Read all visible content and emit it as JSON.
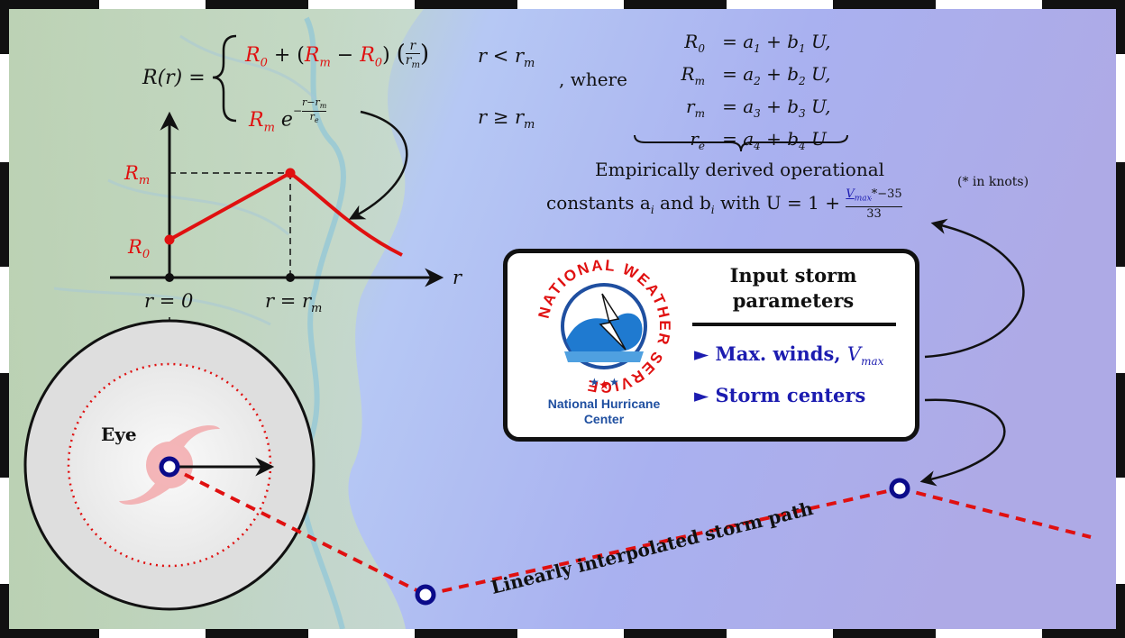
{
  "equation": {
    "lhs": "R(r) =",
    "case1_cond": "r < r",
    "case1_cond_sub": "m",
    "case2_cond": "r ≥ r",
    "case2_cond_sub": "m",
    "where": ", where",
    "constants": [
      {
        "name": "R",
        "sub": "0",
        "rhs": "= a",
        "rsub": "1",
        "tail": "+ b",
        "tsub": "1",
        "end": "U,"
      },
      {
        "name": "R",
        "sub": "m",
        "rhs": "= a",
        "rsub": "2",
        "tail": "+ b",
        "tsub": "2",
        "end": "U,"
      },
      {
        "name": "r",
        "sub": "m",
        "rhs": "= a",
        "rsub": "3",
        "tail": "+ b",
        "tsub": "3",
        "end": "U,"
      },
      {
        "name": "r",
        "sub": "e",
        "rhs": "= a",
        "rsub": "4",
        "tail": "+ b",
        "tsub": "4",
        "end": "U"
      }
    ]
  },
  "constants_note": {
    "line1": "Empirically derived operational",
    "line2": "constants a",
    "line2b": "and b",
    "line2c": "with U = 1 +",
    "frac_num": "V",
    "frac_num_sub": "max",
    "frac_num_tail": "*−35",
    "frac_den": "33",
    "knots": "(* in knots)"
  },
  "graph": {
    "y_label_rm": "R",
    "y_label_rm_sub": "m",
    "y_label_r0": "R",
    "y_label_r0_sub": "0",
    "x_axis": "r",
    "x_tick_0": "r = 0",
    "x_tick_m": "r = r",
    "x_tick_m_sub": "m"
  },
  "eye_label": "Eye",
  "path_label": "Linearly interpolated storm path",
  "card": {
    "title_line1": "Input storm",
    "title_line2": "parameters",
    "item1": "► Max. winds,",
    "item1_var": "V",
    "item1_sub": "max",
    "item2": "► Storm centers",
    "logo_ring_text": "NATIONAL WEATHER SERVICE",
    "logo_caption_1": "National Hurricane",
    "logo_caption_2": "Center"
  },
  "colors": {
    "accent_red": "#e01010",
    "accent_blue": "#1c1cb0",
    "path_node": "#0b0b8a"
  }
}
